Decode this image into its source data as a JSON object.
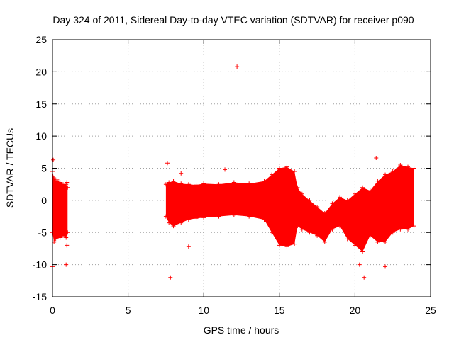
{
  "chart_data": {
    "type": "scatter",
    "title": "Day 324 of 2011, Sidereal Day-to-day VTEC variation (SDTVAR) for receiver p090",
    "xlabel": "GPS time / hours",
    "ylabel": "SDTVAR / TECUs",
    "xlim": [
      0,
      25
    ],
    "ylim": [
      -15,
      25
    ],
    "xticks": [
      0,
      5,
      10,
      15,
      20,
      25
    ],
    "yticks": [
      -15,
      -10,
      -5,
      0,
      5,
      10,
      15,
      20,
      25
    ],
    "grid": true,
    "marker": "+",
    "color": "#ff0000",
    "series": [
      {
        "name": "SDTVAR",
        "envelope": {
          "x": [
            0.0,
            0.1,
            0.2,
            0.3,
            0.5,
            0.7,
            0.9,
            1.0,
            7.5,
            7.7,
            8.0,
            8.5,
            9.0,
            9.5,
            10.0,
            11.0,
            12.0,
            13.0,
            14.0,
            14.5,
            15.0,
            15.5,
            16.0,
            16.2,
            16.5,
            17.0,
            17.5,
            18.0,
            18.5,
            19.0,
            19.5,
            20.0,
            20.5,
            21.0,
            21.5,
            22.0,
            22.5,
            23.0,
            23.5,
            23.9
          ],
          "upper": [
            4.5,
            3.5,
            3.0,
            3.2,
            2.8,
            2.5,
            2.5,
            2.0,
            2.5,
            2.8,
            3.0,
            2.6,
            2.5,
            2.4,
            2.6,
            2.5,
            2.8,
            2.6,
            3.0,
            4.0,
            5.0,
            5.2,
            4.5,
            2.0,
            1.0,
            0.0,
            -1.0,
            -2.0,
            -0.5,
            0.5,
            0.0,
            1.0,
            2.0,
            1.5,
            3.0,
            4.0,
            4.5,
            5.5,
            5.2,
            5.0
          ],
          "lower": [
            -5.0,
            -6.5,
            -6.0,
            -6.0,
            -5.8,
            -5.5,
            -5.8,
            -5.0,
            -2.5,
            -3.5,
            -4.0,
            -3.5,
            -3.0,
            -2.8,
            -2.7,
            -2.5,
            -2.3,
            -2.5,
            -3.0,
            -5.0,
            -7.0,
            -7.2,
            -6.8,
            -4.0,
            -4.5,
            -5.0,
            -5.5,
            -6.5,
            -4.5,
            -4.0,
            -6.0,
            -7.0,
            -8.0,
            -5.5,
            -6.5,
            -6.5,
            -5.0,
            -4.5,
            -4.5,
            -4.0
          ]
        },
        "outliers": [
          {
            "x": 0.0,
            "y": -10.3
          },
          {
            "x": 0.05,
            "y": 6.3
          },
          {
            "x": 0.9,
            "y": -10.0
          },
          {
            "x": 0.95,
            "y": 2.8
          },
          {
            "x": 0.95,
            "y": -7.0
          },
          {
            "x": 7.6,
            "y": 5.8
          },
          {
            "x": 7.8,
            "y": -12.0
          },
          {
            "x": 8.5,
            "y": 4.2
          },
          {
            "x": 9.0,
            "y": -7.2
          },
          {
            "x": 12.2,
            "y": 20.8
          },
          {
            "x": 20.6,
            "y": -12.0
          },
          {
            "x": 21.4,
            "y": 6.6
          },
          {
            "x": 22.0,
            "y": -10.3
          },
          {
            "x": 20.3,
            "y": -10.0
          },
          {
            "x": 11.4,
            "y": 4.8
          }
        ]
      }
    ]
  }
}
